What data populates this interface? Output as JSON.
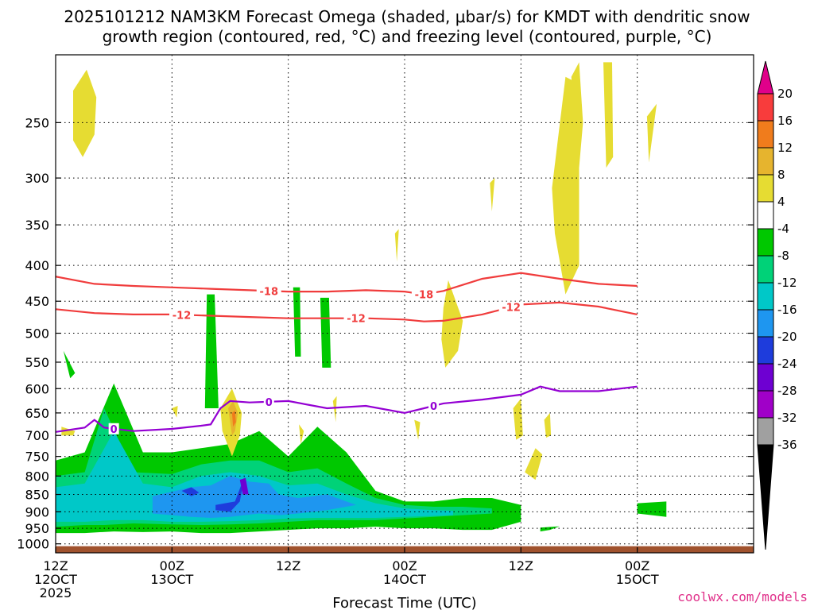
{
  "chart_data": {
    "type": "heatmap",
    "title_line1": "2025101212 NAM3KM Forecast Omega (shaded, μbar/s) for KMDT with dendritic snow",
    "title_line2": "growth region (contoured, red, °C) and freezing level (contoured, purple, °C)",
    "xlabel": "Forecast Time (UTC)",
    "credit": "coolwx.com/models",
    "xlim": [
      0,
      72
    ],
    "ylim": [
      200,
      1030
    ],
    "y_scale": "log-pressure",
    "grid": true,
    "x_ticks": [
      {
        "x": 0,
        "lines": [
          "12Z",
          "12OCT",
          "2025"
        ]
      },
      {
        "x": 12,
        "lines": [
          "00Z",
          "13OCT"
        ]
      },
      {
        "x": 24,
        "lines": [
          "12Z"
        ]
      },
      {
        "x": 36,
        "lines": [
          "00Z",
          "14OCT"
        ]
      },
      {
        "x": 48,
        "lines": [
          "12Z"
        ]
      },
      {
        "x": 60,
        "lines": [
          "00Z",
          "15OCT"
        ]
      }
    ],
    "y_ticks": [
      250,
      300,
      350,
      400,
      450,
      500,
      550,
      600,
      650,
      700,
      750,
      800,
      850,
      900,
      950,
      1000
    ],
    "colorbar": {
      "ticks": [
        "20",
        "16",
        "12",
        "8",
        "4",
        "-4",
        "-8",
        "-12",
        "-16",
        "-20",
        "-24",
        "-28",
        "-32",
        "-36"
      ],
      "colors": [
        "#e0008a",
        "#f83c3c",
        "#f07c1c",
        "#e6b42e",
        "#e6dc32",
        "#ffffff",
        "#00c800",
        "#00d278",
        "#00c8c8",
        "#1e96f0",
        "#1e3cdc",
        "#6e00d2",
        "#a000c8",
        "#a0a0a0",
        "#000000"
      ]
    },
    "colors": {
      "ground": "#a0522d",
      "dgz": "#f03c3c",
      "freezing": "#9400d3"
    },
    "isotherm_-18": {
      "label": "-18",
      "x": [
        0,
        4,
        8,
        12,
        16,
        20,
        24,
        28,
        32,
        36,
        38,
        40,
        44,
        48,
        52,
        56,
        60
      ],
      "p": [
        415,
        425,
        428,
        430,
        432,
        434,
        436,
        436,
        434,
        436,
        440,
        435,
        418,
        410,
        418,
        425,
        428
      ],
      "label_x": [
        22,
        38
      ]
    },
    "isotherm_-12": {
      "label": "-12",
      "x": [
        0,
        4,
        8,
        12,
        16,
        20,
        24,
        28,
        32,
        36,
        38,
        40,
        44,
        48,
        52,
        56,
        60
      ],
      "p": [
        462,
        468,
        470,
        470,
        472,
        474,
        476,
        476,
        476,
        478,
        481,
        480,
        470,
        455,
        452,
        458,
        470
      ],
      "label_x": [
        13,
        31,
        47
      ]
    },
    "freezing_level": {
      "label": "0",
      "x": [
        0,
        3,
        4,
        5,
        8,
        12,
        15,
        16,
        17,
        18,
        20,
        24,
        28,
        32,
        36,
        38,
        40,
        44,
        48,
        50,
        52,
        56,
        60
      ],
      "p": [
        692,
        682,
        665,
        682,
        690,
        685,
        678,
        675,
        640,
        625,
        628,
        625,
        640,
        635,
        650,
        640,
        630,
        622,
        612,
        596,
        605,
        605,
        596
      ],
      "label_x": [
        6,
        22,
        39
      ]
    },
    "omega_regions": [
      {
        "c": 6,
        "x": [
          0,
          3,
          6,
          9,
          12,
          15,
          18,
          21,
          24,
          27,
          30,
          33,
          36,
          39,
          42,
          45,
          48,
          48,
          45,
          42,
          39,
          36,
          33,
          30,
          27,
          24,
          21,
          18,
          15,
          12,
          9,
          6,
          3,
          0
        ],
        "p": [
          760,
          740,
          590,
          740,
          740,
          730,
          720,
          690,
          750,
          680,
          740,
          840,
          870,
          870,
          860,
          860,
          880,
          930,
          955,
          955,
          950,
          950,
          945,
          950,
          950,
          955,
          960,
          965,
          965,
          960,
          962,
          960,
          965,
          965
        ]
      },
      {
        "c": 6,
        "x": [
          15.6,
          16.4,
          16.8,
          15.4
        ],
        "p": [
          440,
          440,
          640,
          640
        ]
      },
      {
        "c": 6,
        "x": [
          24.5,
          25.2,
          25.3,
          24.7
        ],
        "p": [
          430,
          430,
          540,
          540
        ]
      },
      {
        "c": 6,
        "x": [
          27.3,
          28.2,
          28.4,
          27.5
        ],
        "p": [
          445,
          445,
          560,
          560
        ]
      },
      {
        "c": 6,
        "x": [
          0.8,
          2.0,
          1.5
        ],
        "p": [
          530,
          570,
          580
        ]
      },
      {
        "c": 6,
        "x": [
          60,
          63,
          63,
          60
        ],
        "p": [
          875,
          870,
          915,
          905
        ]
      },
      {
        "c": 6,
        "x": [
          50,
          52,
          51,
          50
        ],
        "p": [
          948,
          944,
          955,
          960
        ]
      },
      {
        "c": 7,
        "x": [
          0,
          3,
          5,
          8,
          12,
          15,
          18,
          21,
          24,
          27,
          30,
          33,
          36,
          39,
          42,
          45,
          45,
          42,
          39,
          36,
          33,
          30,
          27,
          24,
          21,
          18,
          15,
          12,
          8,
          5,
          3,
          0
        ],
        "p": [
          800,
          790,
          640,
          790,
          795,
          770,
          760,
          760,
          790,
          780,
          820,
          860,
          880,
          885,
          885,
          890,
          905,
          910,
          915,
          920,
          925,
          925,
          925,
          930,
          935,
          938,
          940,
          938,
          935,
          940,
          940,
          945
        ]
      },
      {
        "c": 8,
        "x": [
          0,
          3,
          6,
          9,
          12,
          15,
          18,
          21,
          24,
          27,
          30,
          33,
          36,
          39,
          41,
          41,
          39,
          36,
          33,
          30,
          27,
          24,
          21,
          18,
          15,
          12,
          9,
          6,
          3,
          0
        ],
        "p": [
          830,
          820,
          690,
          820,
          830,
          800,
          790,
          800,
          825,
          820,
          850,
          875,
          890,
          895,
          897,
          910,
          912,
          915,
          918,
          918,
          918,
          920,
          925,
          928,
          930,
          930,
          925,
          925,
          930,
          930
        ]
      },
      {
        "c": 9,
        "x": [
          10,
          14,
          16,
          18,
          20,
          22,
          23,
          25,
          28,
          30,
          31,
          28,
          25,
          23,
          21,
          18,
          16,
          14,
          10
        ],
        "p": [
          855,
          830,
          825,
          800,
          815,
          820,
          850,
          860,
          850,
          870,
          880,
          895,
          905,
          910,
          905,
          915,
          918,
          915,
          905
        ]
      },
      {
        "c": 10,
        "x": [
          13,
          14,
          14.8,
          14.0
        ],
        "p": [
          840,
          830,
          845,
          855
        ]
      },
      {
        "c": 10,
        "x": [
          16.5,
          18.5,
          19.5,
          19.0,
          18.0,
          16.5
        ],
        "p": [
          880,
          870,
          800,
          870,
          900,
          895
        ]
      },
      {
        "c": 11,
        "x": [
          19.0,
          19.6,
          19.9,
          19.3
        ],
        "p": [
          810,
          805,
          850,
          850
        ]
      },
      {
        "c": 4,
        "x": [
          1.8,
          3.2,
          4.2,
          4.0,
          2.8,
          1.8
        ],
        "p": [
          225,
          210,
          230,
          260,
          280,
          265
        ]
      },
      {
        "c": 4,
        "x": [
          17.0,
          18.2,
          19.2,
          19.0,
          18.2,
          17.2
        ],
        "p": [
          640,
          600,
          650,
          700,
          750,
          690
        ]
      },
      {
        "c": 3,
        "x": [
          17.8,
          18.3,
          18.8,
          18.5,
          18.2
        ],
        "p": [
          640,
          625,
          650,
          690,
          700
        ]
      },
      {
        "c": 2,
        "x": [
          18.2,
          18.5,
          18.6,
          18.3
        ],
        "p": [
          650,
          645,
          670,
          680
        ]
      },
      {
        "c": 4,
        "x": [
          40.0,
          40.5,
          42.0,
          41.5,
          40.2,
          39.8
        ],
        "p": [
          460,
          420,
          480,
          530,
          560,
          510
        ]
      },
      {
        "c": 4,
        "x": [
          51.2,
          52.6,
          54.0,
          54.0,
          52.6,
          51.5
        ],
        "p": [
          310,
          215,
          220,
          400,
          440,
          360
        ]
      },
      {
        "c": 4,
        "x": [
          53.2,
          54.0,
          54.4,
          54.0
        ],
        "p": [
          215,
          205,
          250,
          290
        ]
      },
      {
        "c": 4,
        "x": [
          56.5,
          57.4,
          57.5,
          56.8
        ],
        "p": [
          205,
          205,
          280,
          290
        ]
      },
      {
        "c": 4,
        "x": [
          47.2,
          48.0,
          48.2,
          47.5
        ],
        "p": [
          640,
          620,
          700,
          710
        ]
      },
      {
        "c": 4,
        "x": [
          48.4,
          49.5,
          50.2,
          49.5
        ],
        "p": [
          790,
          730,
          745,
          810
        ]
      },
      {
        "c": 4,
        "x": [
          50.4,
          51.0,
          51.1,
          50.6
        ],
        "p": [
          665,
          650,
          700,
          705
        ]
      },
      {
        "c": 4,
        "x": [
          0.6,
          2.0,
          1.8,
          0.6
        ],
        "p": [
          680,
          690,
          700,
          700
        ]
      },
      {
        "c": 4,
        "x": [
          12.0,
          12.6,
          12.5
        ],
        "p": [
          640,
          635,
          660
        ]
      },
      {
        "c": 4,
        "x": [
          25.1,
          25.6,
          25.3
        ],
        "p": [
          675,
          690,
          720
        ]
      },
      {
        "c": 4,
        "x": [
          28.6,
          29.0,
          28.9
        ],
        "p": [
          625,
          615,
          670
        ]
      },
      {
        "c": 4,
        "x": [
          37.0,
          37.6,
          37.4
        ],
        "p": [
          665,
          670,
          710
        ]
      },
      {
        "c": 4,
        "x": [
          35.0,
          35.4,
          35.2
        ],
        "p": [
          360,
          355,
          395
        ]
      },
      {
        "c": 4,
        "x": [
          44.8,
          45.3,
          45.0
        ],
        "p": [
          305,
          300,
          335
        ]
      },
      {
        "c": 4,
        "x": [
          61.0,
          62.0,
          61.2
        ],
        "p": [
          245,
          235,
          285
        ]
      }
    ]
  }
}
